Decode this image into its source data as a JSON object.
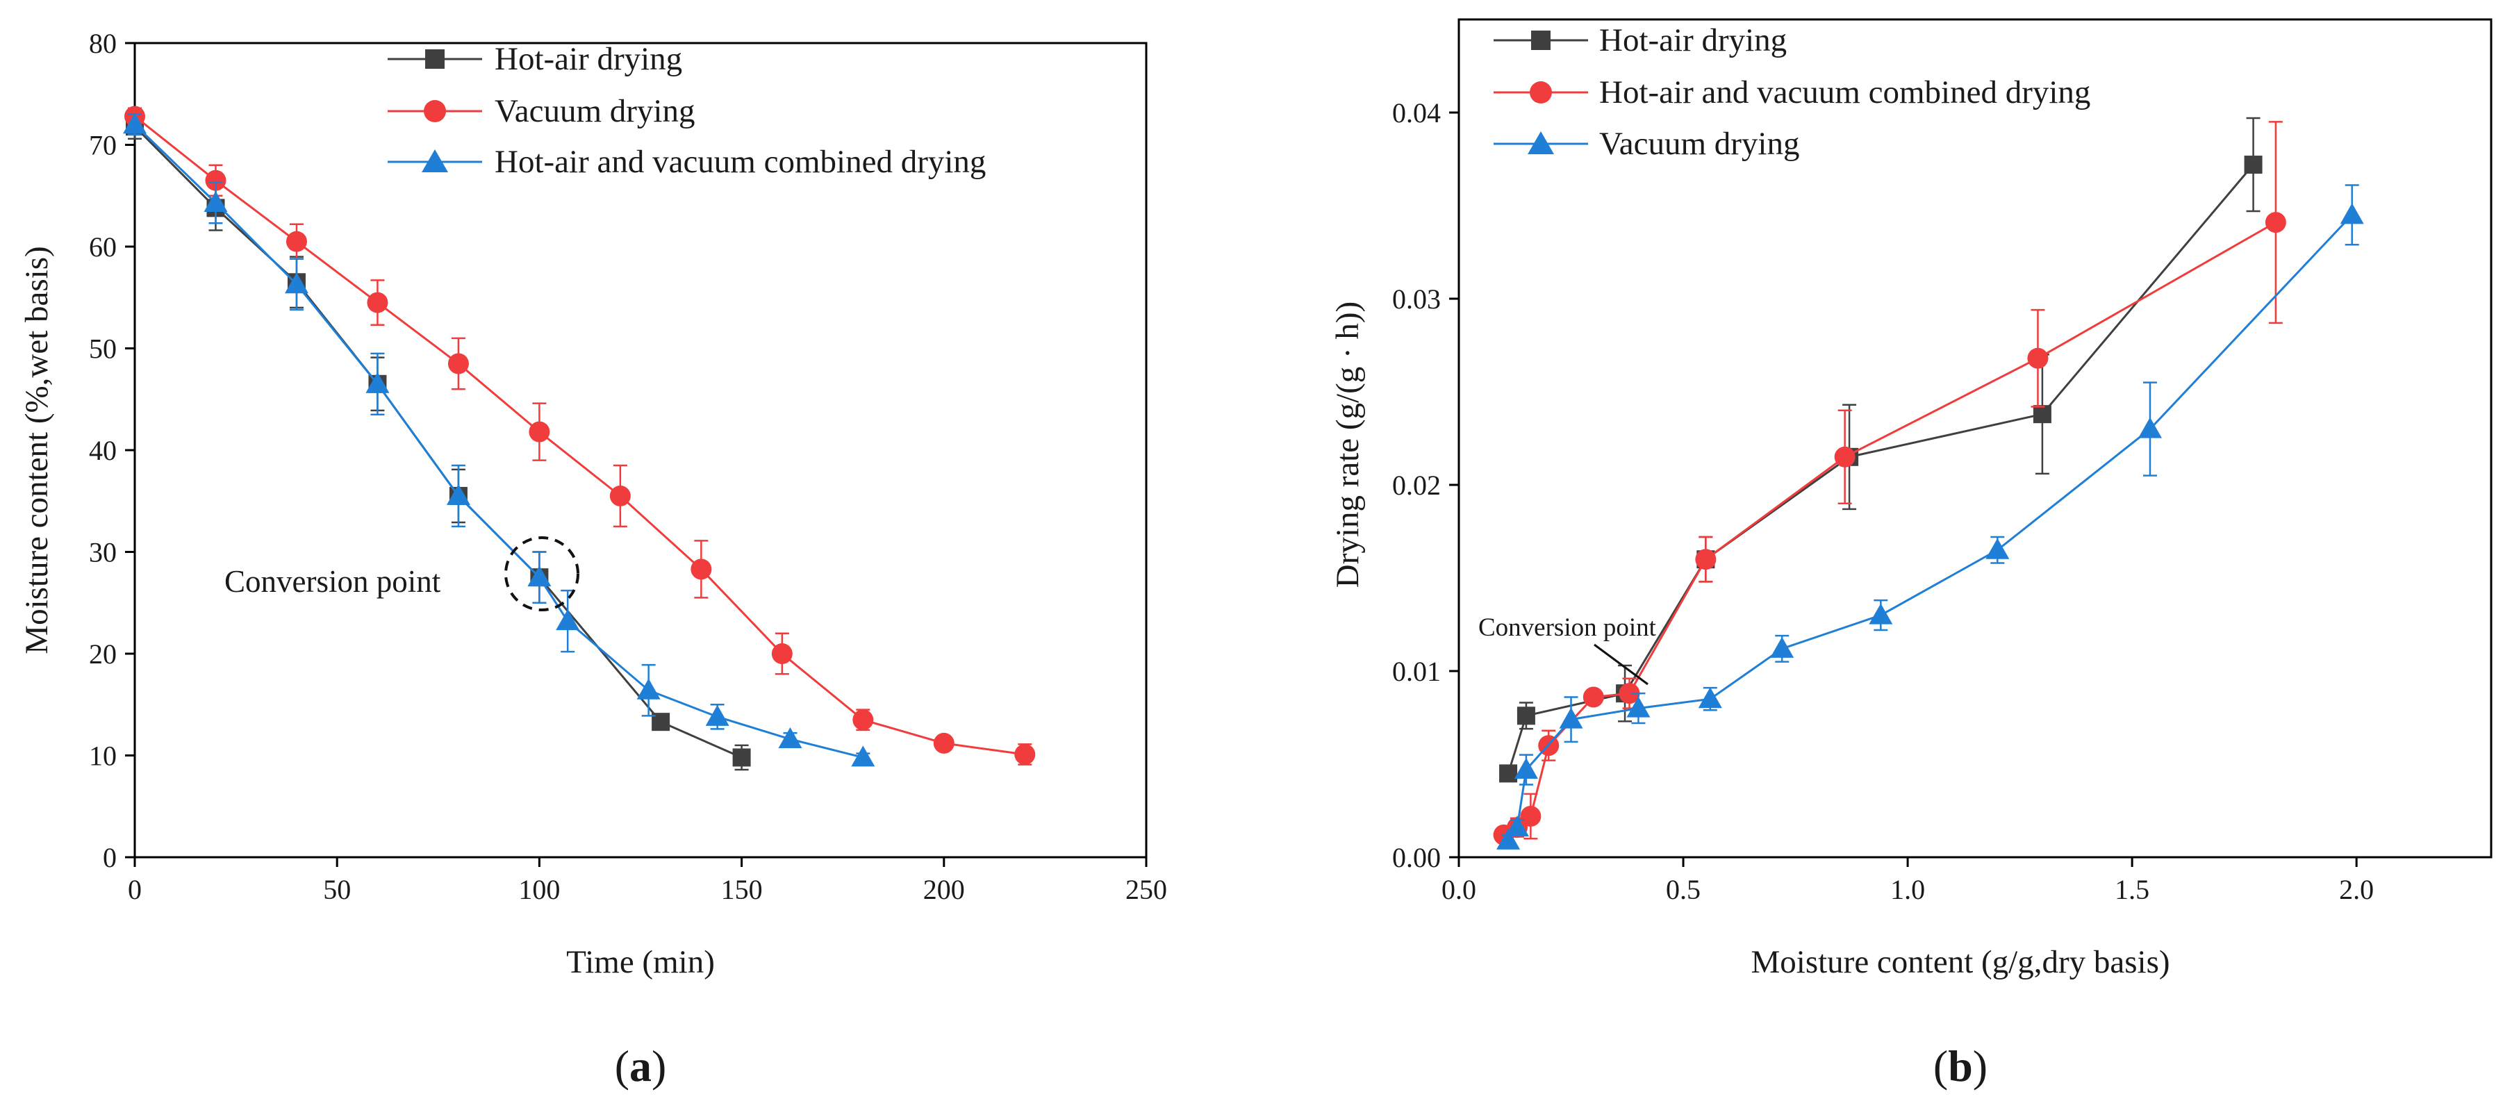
{
  "chart_data": [
    {
      "id": "a",
      "type": "line",
      "panel_label": "a",
      "xlabel": "Time (min)",
      "ylabel": "Moisture content (%,wet basis)",
      "xlim": [
        0,
        250
      ],
      "ylim": [
        0,
        80
      ],
      "xticks": [
        0,
        50,
        100,
        150,
        200,
        250
      ],
      "yticks": [
        0,
        10,
        20,
        30,
        40,
        50,
        60,
        70,
        80
      ],
      "xtick_labels": [
        "0",
        "50",
        "100",
        "150",
        "200",
        "250"
      ],
      "ytick_labels": [
        "0",
        "10",
        "20",
        "30",
        "40",
        "50",
        "60",
        "70",
        "80"
      ],
      "legend_position": "top-center",
      "annotation": {
        "text": "Conversion point",
        "x": 100,
        "y": 27.5
      },
      "series": [
        {
          "name": "Hot-air drying",
          "color": "#404040",
          "marker": "square",
          "x": [
            0,
            20,
            40,
            60,
            80,
            100,
            130,
            150
          ],
          "y": [
            71.8,
            63.8,
            56.5,
            46.5,
            35.5,
            27.5,
            13.3,
            9.8
          ],
          "err": [
            1.2,
            2.2,
            2.5,
            2.6,
            2.6,
            2.5,
            0.5,
            1.2
          ]
        },
        {
          "name": "Vacuum drying",
          "color": "#f03c3c",
          "marker": "circle",
          "x": [
            0,
            20,
            40,
            60,
            80,
            100,
            120,
            140,
            160,
            180,
            200,
            220
          ],
          "y": [
            72.8,
            66.5,
            60.5,
            54.5,
            48.5,
            41.8,
            35.5,
            28.3,
            20.0,
            13.5,
            11.2,
            10.1
          ],
          "err": [
            0.8,
            1.5,
            1.7,
            2.2,
            2.5,
            2.8,
            3.0,
            2.8,
            2.0,
            1.0,
            0.6,
            1.0
          ]
        },
        {
          "name": "Hot-air and vacuum combined drying",
          "color": "#1f7fd6",
          "marker": "triangle",
          "x": [
            0,
            20,
            40,
            60,
            80,
            100,
            107,
            127,
            144,
            162,
            180
          ],
          "y": [
            72.0,
            64.3,
            56.3,
            46.5,
            35.5,
            27.5,
            23.2,
            16.4,
            13.8,
            11.6,
            9.8
          ],
          "err": [
            1.0,
            2.0,
            2.5,
            3.0,
            3.0,
            2.5,
            3.0,
            2.5,
            1.2,
            0.6,
            0.4
          ]
        }
      ]
    },
    {
      "id": "b",
      "type": "line",
      "panel_label": "b",
      "xlabel": "Moisture content (g/g,dry basis)",
      "ylabel": "Drying rate (g/(g · h))",
      "xlim": [
        0,
        2.3
      ],
      "ylim": [
        0,
        0.045
      ],
      "xticks": [
        0,
        0.5,
        1.0,
        1.5,
        2.0
      ],
      "yticks": [
        0,
        0.01,
        0.02,
        0.03,
        0.04
      ],
      "xtick_labels": [
        "0.0",
        "0.5",
        "1.0",
        "1.5",
        "2.0"
      ],
      "ytick_labels": [
        "0.00",
        "0.01",
        "0.02",
        "0.03",
        "0.04"
      ],
      "legend_position": "top-left",
      "annotation": {
        "text": "Conversion point",
        "x": 0.37,
        "y": 0.0088
      },
      "series": [
        {
          "name": "Hot-air drying",
          "color": "#404040",
          "marker": "square",
          "x": [
            0.11,
            0.15,
            0.37,
            0.55,
            0.87,
            1.3,
            1.77
          ],
          "y": [
            0.0045,
            0.0076,
            0.0088,
            0.016,
            0.0215,
            0.0238,
            0.0372
          ],
          "err": [
            0,
            0.0007,
            0.0015,
            0.0012,
            0.0028,
            0.0032,
            0.0025
          ]
        },
        {
          "name": "Hot-air and vacuum combined drying",
          "color": "#f03c3c",
          "marker": "circle",
          "x": [
            0.1,
            0.13,
            0.16,
            0.2,
            0.3,
            0.38,
            0.55,
            0.86,
            1.29,
            1.82
          ],
          "y": [
            0.0012,
            0.0016,
            0.0022,
            0.006,
            0.0086,
            0.0088,
            0.016,
            0.0215,
            0.0268,
            0.0341
          ],
          "err": [
            0.0003,
            0.0005,
            0.0012,
            0.0008,
            0.0003,
            0.0008,
            0.0012,
            0.0025,
            0.0026,
            0.0054
          ]
        },
        {
          "name": "Vacuum drying",
          "color": "#1f7fd6",
          "marker": "triangle",
          "x": [
            0.11,
            0.13,
            0.15,
            0.25,
            0.4,
            0.56,
            0.72,
            0.94,
            1.2,
            1.54,
            1.99
          ],
          "y": [
            0.0009,
            0.0016,
            0.0047,
            0.0074,
            0.008,
            0.0085,
            0.0112,
            0.013,
            0.0165,
            0.023,
            0.0345
          ],
          "err": [
            0.0003,
            0.0004,
            0.0008,
            0.0012,
            0.0008,
            0.0006,
            0.0007,
            0.0008,
            0.0007,
            0.0025,
            0.0016
          ]
        }
      ]
    }
  ]
}
